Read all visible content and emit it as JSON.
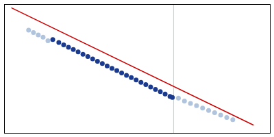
{
  "chart_data": {
    "type": "scatter",
    "tick_labels": false,
    "grid": false,
    "xlim": [
      -0.48,
      0.62
    ],
    "ylim": [
      -0.52,
      0.58
    ],
    "series": [
      {
        "type": "vline",
        "color": "#add8e6",
        "x": [
          0.22
        ]
      },
      {
        "type": "line",
        "color": "#cc0000",
        "x": [
          -0.45,
          0.55
        ],
        "values": [
          0.55,
          -0.45
        ]
      },
      {
        "type": "scatter",
        "color": "#b0c4de",
        "x": [
          -0.38,
          -0.36,
          -0.34,
          -0.32,
          -0.3
        ],
        "values": [
          0.36,
          0.34,
          0.32,
          0.3,
          0.27
        ]
      },
      {
        "type": "scatter",
        "color": "#b0c4de",
        "x": [
          0.24,
          0.265,
          0.29,
          0.315,
          0.34,
          0.365,
          0.39,
          0.415,
          0.44,
          0.465
        ],
        "values": [
          -0.22,
          -0.245,
          -0.265,
          -0.285,
          -0.305,
          -0.325,
          -0.345,
          -0.365,
          -0.385,
          -0.405
        ]
      },
      {
        "type": "scatter",
        "color": "#1a3a8f",
        "x": [
          -0.28,
          -0.255,
          -0.235,
          -0.215,
          -0.195,
          -0.175,
          -0.155,
          -0.135,
          -0.115,
          -0.095,
          -0.075,
          -0.055,
          -0.035,
          -0.015,
          0.005,
          0.025,
          0.045,
          0.065,
          0.085,
          0.105,
          0.125,
          0.145,
          0.165,
          0.185,
          0.205,
          0.215
        ],
        "values": [
          0.28,
          0.255,
          0.235,
          0.215,
          0.195,
          0.175,
          0.155,
          0.135,
          0.115,
          0.095,
          0.075,
          0.055,
          0.035,
          0.015,
          -0.005,
          -0.025,
          -0.045,
          -0.065,
          -0.085,
          -0.105,
          -0.125,
          -0.145,
          -0.165,
          -0.185,
          -0.205,
          -0.215
        ]
      }
    ]
  }
}
